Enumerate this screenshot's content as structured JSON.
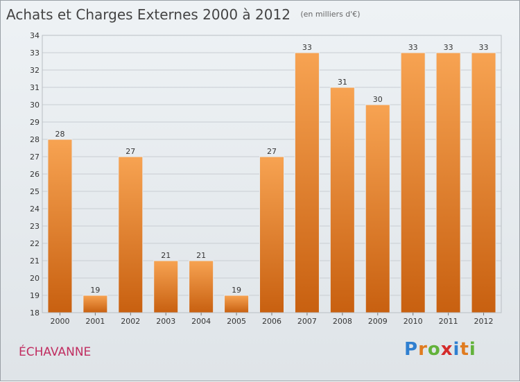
{
  "header": {
    "title": "Achats et Charges Externes 2000 à 2012",
    "subtitle": "(en milliers d'€)"
  },
  "commune": "ÉCHAVANNE",
  "logo": {
    "text": "Proxiti"
  },
  "colors": {
    "bar_top": "#f7a352",
    "bar_bottom": "#c86010",
    "grid": "#c8cdd2",
    "axis_text": "#333333"
  },
  "chart_data": {
    "type": "bar",
    "title": "Achats et Charges Externes 2000 à 2012",
    "subtitle": "(en milliers d'€)",
    "categories": [
      "2000",
      "2001",
      "2002",
      "2003",
      "2004",
      "2005",
      "2006",
      "2007",
      "2008",
      "2009",
      "2010",
      "2011",
      "2012"
    ],
    "values": [
      28,
      19,
      27,
      21,
      21,
      19,
      27,
      33,
      31,
      30,
      33,
      33,
      33
    ],
    "data_labels": [
      "28",
      "19",
      "27",
      "21",
      "21",
      "19",
      "27",
      "33",
      "31",
      "30",
      "33",
      "33",
      "33"
    ],
    "ylim": [
      18,
      34
    ],
    "yticks": [
      18,
      19,
      20,
      21,
      22,
      23,
      24,
      25,
      26,
      27,
      28,
      29,
      30,
      31,
      32,
      33,
      34
    ],
    "grid": true,
    "legend": "none"
  }
}
